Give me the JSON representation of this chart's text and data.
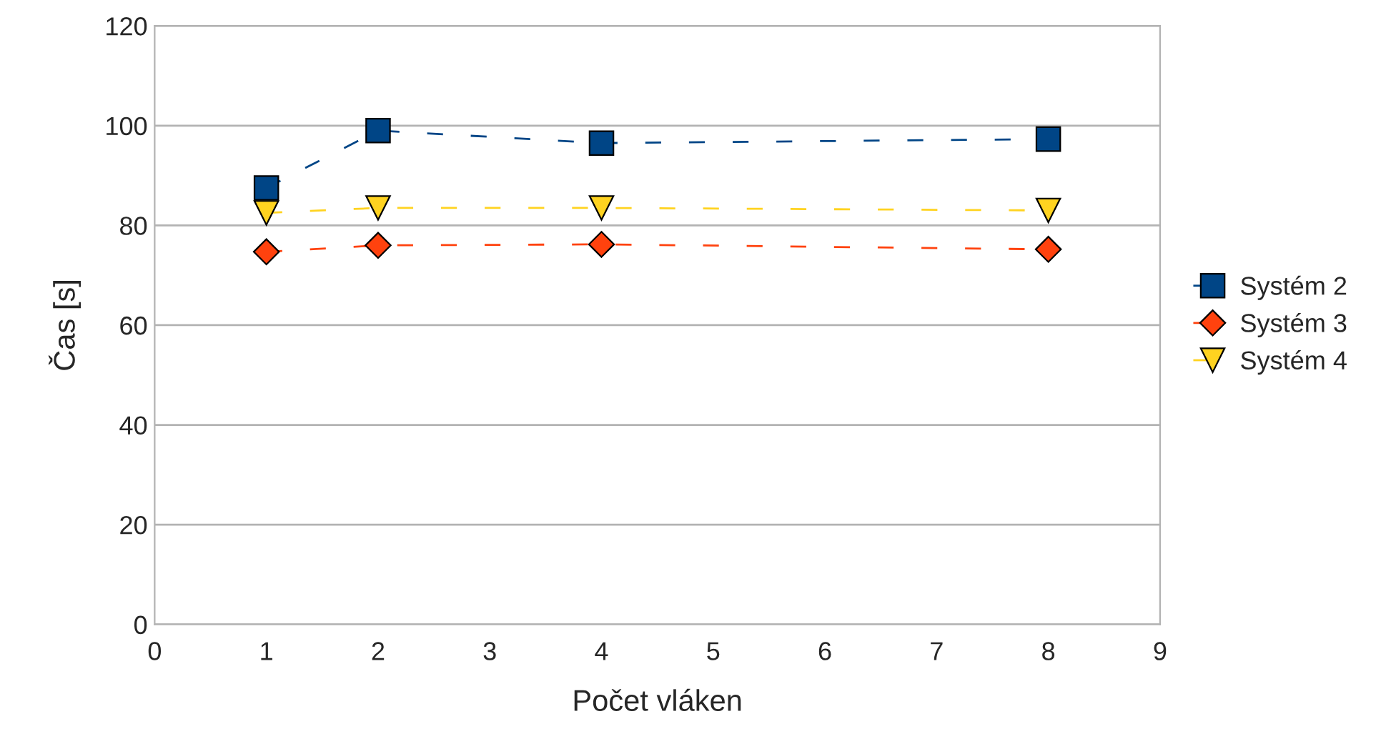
{
  "chart_data": {
    "type": "line",
    "xlabel": "Počet vláken",
    "ylabel": "Čas [s]",
    "x": [
      1,
      2,
      4,
      8
    ],
    "series": [
      {
        "name": "Systém 2",
        "color": "#004586",
        "marker": "square",
        "values": [
          87.5,
          99,
          96.5,
          97.3
        ]
      },
      {
        "name": "Systém 3",
        "color": "#ff420e",
        "marker": "diamond",
        "values": [
          74.7,
          76,
          76.2,
          75.2
        ]
      },
      {
        "name": "Systém 4",
        "color": "#ffd320",
        "marker": "triangle",
        "values": [
          82.5,
          83.5,
          83.5,
          83
        ]
      }
    ],
    "xlim": [
      0,
      9
    ],
    "xticks": [
      0,
      1,
      2,
      3,
      4,
      5,
      6,
      7,
      8,
      9
    ],
    "ylim": [
      0,
      120
    ],
    "yticks": [
      0,
      20,
      40,
      60,
      80,
      100,
      120
    ],
    "grid": "y",
    "legend": "right",
    "line_style": "dashed"
  }
}
